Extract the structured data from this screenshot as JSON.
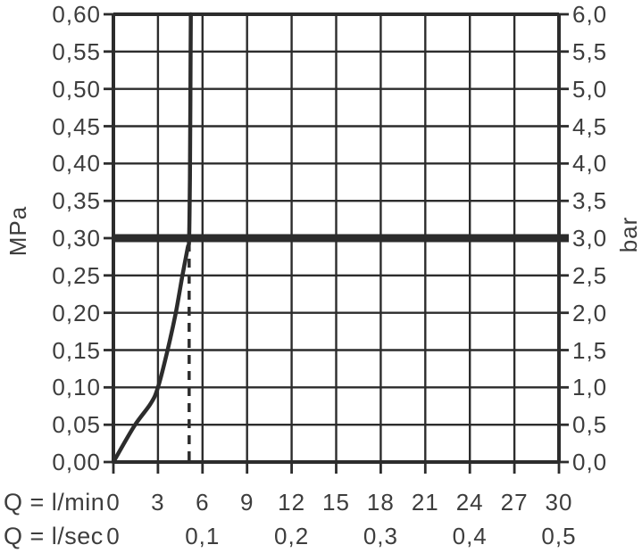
{
  "chart_data": {
    "type": "line",
    "background": "#ffffff",
    "line_color": "#2c2c2c",
    "text_color": "#3d3d3d",
    "grid": true,
    "legend": false,
    "y_axis_left": {
      "unit": "MPa",
      "min": 0,
      "max": 0.6,
      "step": 0.05,
      "tick_labels": [
        "0,60",
        "0,55",
        "0,50",
        "0,45",
        "0,40",
        "0,35",
        "0,30",
        "0,25",
        "0,20",
        "0,15",
        "0,10",
        "0,05",
        "0,00"
      ]
    },
    "y_axis_right": {
      "unit": "bar",
      "min": 0,
      "max": 6.0,
      "step": 0.5,
      "tick_labels": [
        "6,0",
        "5,5",
        "5,0",
        "4,5",
        "4,0",
        "3,5",
        "3,0",
        "2,5",
        "2,0",
        "1,5",
        "1,0",
        "0,5",
        "0,0"
      ]
    },
    "x_axis": {
      "min": 0,
      "max": 30,
      "step": 3,
      "rows": [
        {
          "label": "Q = l/min",
          "tick_labels": [
            "0",
            "3",
            "6",
            "9",
            "12",
            "15",
            "18",
            "21",
            "24",
            "27",
            "30"
          ],
          "tick_values": [
            0,
            3,
            6,
            9,
            12,
            15,
            18,
            21,
            24,
            27,
            30
          ]
        },
        {
          "label": "Q = l/sec",
          "tick_labels": [
            "0",
            "0,1",
            "0,2",
            "0,3",
            "0,4",
            "0,5"
          ],
          "tick_values_lmin": [
            0,
            6,
            12,
            18,
            24,
            30
          ]
        }
      ]
    },
    "series": [
      {
        "name": "pressure-flow-curve",
        "points_lmin_mpa": [
          [
            0,
            0.0
          ],
          [
            1.4,
            0.048
          ],
          [
            2.5,
            0.078
          ],
          [
            3.0,
            0.1
          ],
          [
            3.65,
            0.15
          ],
          [
            4.2,
            0.2
          ],
          [
            4.65,
            0.25
          ],
          [
            5.0,
            0.287
          ],
          [
            5.1,
            0.3
          ],
          [
            5.15,
            0.38
          ],
          [
            5.18,
            0.48
          ],
          [
            5.21,
            0.6
          ]
        ]
      }
    ],
    "reference_lines": {
      "thick_horizontal": {
        "mpa": 0.3,
        "bar": 3.0
      },
      "dashed_vertical": {
        "lmin": 5.1,
        "from_mpa": 0.0,
        "to_mpa": 0.3
      }
    }
  }
}
